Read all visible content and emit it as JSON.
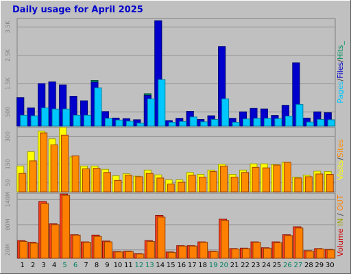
{
  "title": "Daily usage for April 2025",
  "colors": {
    "background": "#c0c0c0",
    "panel": "#c0c0c0",
    "gridline": "#909090",
    "pages": "#00c8ff",
    "files": "#0000cc",
    "hits": "#009060",
    "visits": "#ffff00",
    "sites": "#ff8c00",
    "volume_in": "#ff4020",
    "volume_out": "#ff8000",
    "weekend_label": "#008060"
  },
  "chart_data": [
    {
      "type": "bar",
      "name": "hits-files-pages",
      "side_label_parts": [
        "Pages",
        "/",
        "Files",
        "/",
        "Hits",
        "_"
      ],
      "yticks": [
        "500",
        "1.5K",
        "2.5K",
        "3.5K"
      ],
      "tick_values": [
        500,
        1500,
        2500,
        3500
      ],
      "ylim": [
        0,
        3800
      ],
      "categories": [
        "1",
        "2",
        "3",
        "4",
        "5",
        "6",
        "7",
        "8",
        "9",
        "10",
        "11",
        "12",
        "13",
        "14",
        "15",
        "16",
        "17",
        "18",
        "19",
        "20",
        "21",
        "22",
        "23",
        "24",
        "25",
        "26",
        "27",
        "28",
        "29",
        "30"
      ],
      "series": [
        {
          "name": "Hits",
          "values": [
            1000,
            640,
            1500,
            1560,
            1450,
            1050,
            890,
            1610,
            510,
            280,
            260,
            220,
            1140,
            3720,
            190,
            270,
            520,
            230,
            360,
            2810,
            270,
            500,
            620,
            600,
            370,
            730,
            2230,
            280,
            500,
            470
          ]
        },
        {
          "name": "Files",
          "values": [
            1000,
            640,
            1500,
            1560,
            1450,
            1050,
            890,
            1550,
            510,
            280,
            260,
            220,
            1080,
            3720,
            190,
            270,
            520,
            230,
            360,
            2810,
            270,
            500,
            620,
            600,
            370,
            730,
            2230,
            280,
            500,
            470
          ]
        },
        {
          "name": "Pages",
          "values": [
            380,
            360,
            640,
            600,
            600,
            380,
            380,
            1350,
            270,
            210,
            170,
            100,
            960,
            1640,
            130,
            160,
            320,
            150,
            230,
            960,
            130,
            250,
            270,
            270,
            260,
            350,
            760,
            140,
            230,
            220
          ]
        }
      ]
    },
    {
      "type": "bar",
      "name": "visits-sites",
      "side_label_parts": [
        "Visits",
        "/",
        "Sites"
      ],
      "yticks": [
        "50",
        "150",
        "300"
      ],
      "tick_values": [
        50,
        150,
        300
      ],
      "ylim": [
        0,
        350
      ],
      "categories": [
        "1",
        "2",
        "3",
        "4",
        "5",
        "6",
        "7",
        "8",
        "9",
        "10",
        "11",
        "12",
        "13",
        "14",
        "15",
        "16",
        "17",
        "18",
        "19",
        "20",
        "21",
        "22",
        "23",
        "24",
        "25",
        "26",
        "27",
        "28",
        "29",
        "30"
      ],
      "series": [
        {
          "name": "Visits",
          "values": [
            140,
            218,
            330,
            288,
            350,
            190,
            140,
            140,
            122,
            87,
            98,
            85,
            118,
            92,
            65,
            65,
            105,
            95,
            118,
            150,
            95,
            118,
            152,
            152,
            148,
            160,
            80,
            90,
            112,
            110
          ]
        },
        {
          "name": "Sites",
          "values": [
            100,
            168,
            320,
            255,
            308,
            195,
            125,
            128,
            105,
            62,
            90,
            82,
            100,
            75,
            42,
            52,
            90,
            80,
            110,
            140,
            80,
            105,
            133,
            130,
            145,
            160,
            75,
            82,
            97,
            95
          ]
        }
      ]
    },
    {
      "type": "bar",
      "name": "volume",
      "side_label_parts": [
        "Volume",
        "IN",
        "/",
        "OUT"
      ],
      "yticks": [
        "20M",
        "80M",
        "140M"
      ],
      "tick_values": [
        20,
        80,
        140
      ],
      "ylim": [
        0,
        155
      ],
      "categories": [
        "1",
        "2",
        "3",
        "4",
        "5",
        "6",
        "7",
        "8",
        "9",
        "10",
        "11",
        "12",
        "13",
        "14",
        "15",
        "16",
        "17",
        "18",
        "19",
        "20",
        "21",
        "22",
        "23",
        "24",
        "25",
        "26",
        "27",
        "28",
        "29",
        "30"
      ],
      "series": [
        {
          "name": "IN",
          "values": [
            42,
            38,
            135,
            82,
            153,
            56,
            39,
            55,
            41,
            16,
            17,
            11,
            42,
            102,
            15,
            30,
            30,
            39,
            17,
            93,
            23,
            24,
            39,
            25,
            39,
            56,
            75,
            18,
            23,
            21
          ]
        },
        {
          "name": "OUT",
          "values": [
            40,
            36,
            130,
            80,
            150,
            55,
            38,
            52,
            39,
            15,
            16,
            10,
            40,
            98,
            14,
            29,
            29,
            38,
            16,
            90,
            22,
            23,
            38,
            24,
            37,
            54,
            72,
            17,
            22,
            20
          ]
        }
      ]
    }
  ],
  "x_axis": {
    "labels": [
      "1",
      "2",
      "3",
      "4",
      "5",
      "6",
      "7",
      "8",
      "9",
      "10",
      "11",
      "12",
      "13",
      "14",
      "15",
      "16",
      "17",
      "18",
      "19",
      "20",
      "21",
      "22",
      "23",
      "24",
      "25",
      "26",
      "27",
      "28",
      "29",
      "30"
    ],
    "weekend_days": [
      5,
      6,
      12,
      13,
      19,
      20,
      26,
      27
    ]
  }
}
